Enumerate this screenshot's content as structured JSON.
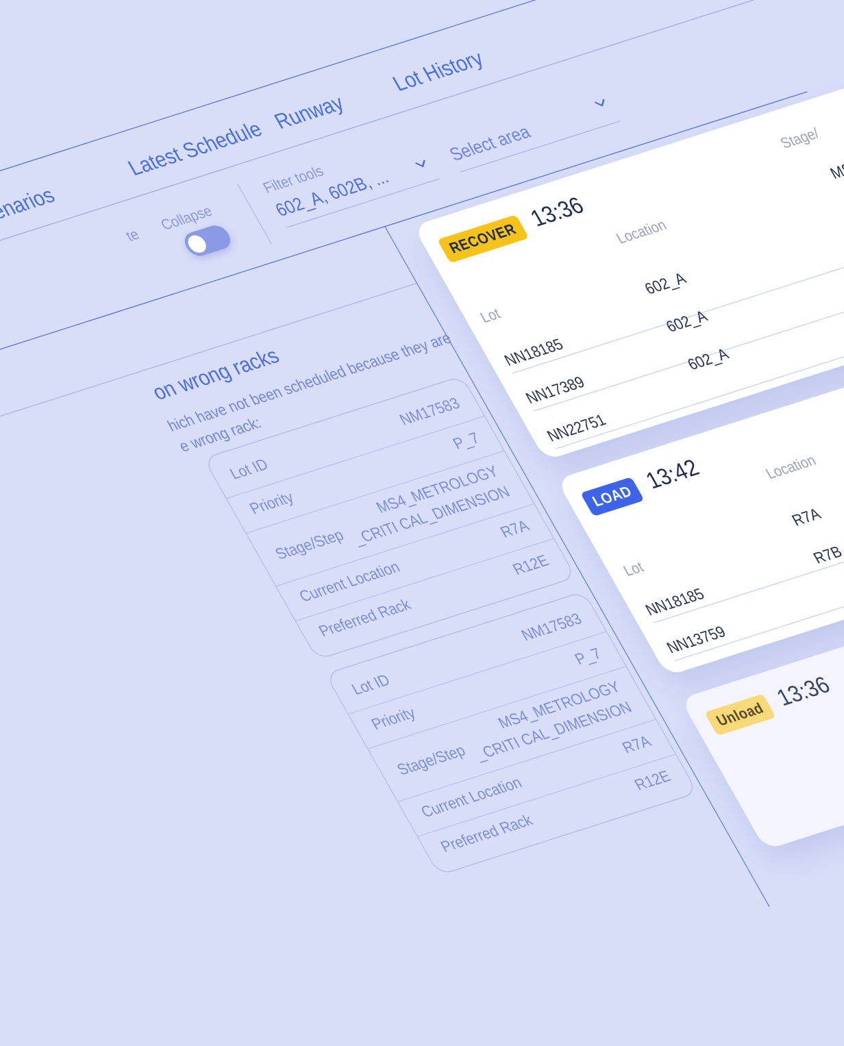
{
  "nav": {
    "tabs": [
      {
        "label": "Scenarios"
      },
      {
        "label": "Latest Schedule"
      },
      {
        "label": "Runway"
      },
      {
        "label": "Lot History"
      }
    ]
  },
  "filters": {
    "left_label": "te",
    "collapse_label": "Collapse",
    "toggle_on": true,
    "tools_label": "Filter tools",
    "tools_value": "602_A, 602B, ...",
    "area_placeholder": "Select area"
  },
  "panel": {
    "title": "on wrong racks",
    "desc_line1": "hich have not been scheduled because they are",
    "desc_line2": "e wrong rack:",
    "records": [
      {
        "fields": [
          {
            "key": "Lot ID",
            "value": "NM17583"
          },
          {
            "key": "Priority",
            "value": "P_7"
          },
          {
            "key": "Stage/Step",
            "value": "MS4_METROLOGY",
            "value2": "_CRITI CAL_DIMENSION"
          },
          {
            "key": "Current Location",
            "value": "R7A"
          },
          {
            "key": "Preferred Rack",
            "value": "R12E"
          }
        ]
      },
      {
        "fields": [
          {
            "key": "Lot ID",
            "value": "NM17583"
          },
          {
            "key": "Priority",
            "value": "P_7"
          },
          {
            "key": "Stage/Step",
            "value": "MS4_METROLOGY",
            "value2": "_CRITI CAL_DIMENSION"
          },
          {
            "key": "Current Location",
            "value": "R7A"
          },
          {
            "key": "Preferred Rack",
            "value": "R12E"
          }
        ]
      }
    ]
  },
  "cards": [
    {
      "badge": "RECOVER",
      "badge_color": "#f7c31a",
      "badge_text_color": "#1f2c50",
      "time": "13:36",
      "headers": [
        "Lot",
        "Location",
        "Stage/"
      ],
      "rows": [
        {
          "lot": "NN18185",
          "location": "602_A",
          "stage": "MS"
        },
        {
          "lot": "NN17389",
          "location": "602_A",
          "stage": ""
        },
        {
          "lot": "NN22751",
          "location": "602_A",
          "stage": ""
        }
      ]
    },
    {
      "badge": "LOAD",
      "badge_color": "#3d63e8",
      "badge_text_color": "#ffffff",
      "time": "13:42",
      "headers": [
        "Lot",
        "Location",
        ""
      ],
      "rows": [
        {
          "lot": "NN18185",
          "location": "R7A",
          "stage": ""
        },
        {
          "lot": "NN13759",
          "location": "R7B",
          "stage": ""
        }
      ]
    },
    {
      "badge": "Unload",
      "badge_color": "#f7d97a",
      "badge_text_color": "#5a4a2a",
      "time": "13:36",
      "headers": [],
      "rows": []
    }
  ]
}
